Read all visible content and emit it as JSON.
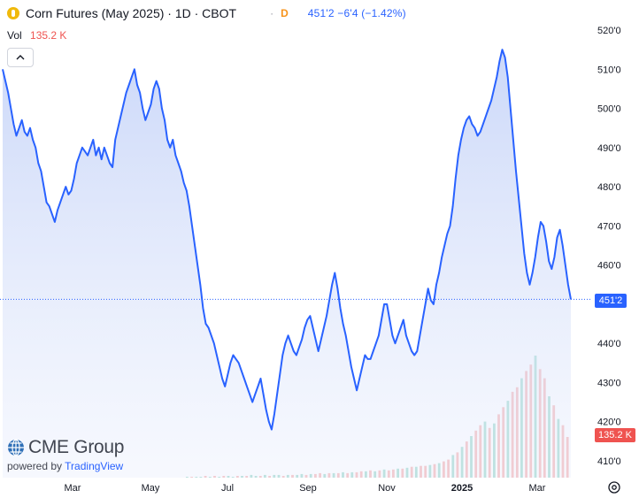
{
  "header": {
    "title": "Corn Futures (May 2025) · 1D · CBOT",
    "separator": "·",
    "delay_flag": "D",
    "quote": "451'2  −6'4 (−1.42%)"
  },
  "volume": {
    "label": "Vol",
    "value": "135.2 K"
  },
  "brand": {
    "name": "CME Group",
    "powered_prefix": "powered by",
    "powered_brand": "TradingView"
  },
  "tags": {
    "last_price": "451'2",
    "last_volume": "135.2 K"
  },
  "colors": {
    "line": "#2962ff",
    "fill_top": "#c9d6f7",
    "up_volume": "#8fd3c4",
    "down_volume": "#f4a6a6",
    "price_tag": "#2962ff",
    "volume_tag": "#ef5350"
  },
  "chart_data": {
    "type": "line",
    "series": [
      {
        "values": [
          510,
          507,
          504,
          500,
          496,
          493,
          495,
          497,
          494,
          493,
          495,
          492,
          490,
          486,
          484,
          480,
          476,
          475,
          473,
          471,
          474,
          476,
          478,
          480,
          478,
          479,
          482,
          486,
          488,
          490,
          489,
          488,
          490,
          492,
          488,
          490,
          487,
          490,
          488,
          486,
          485,
          492,
          495,
          498,
          501,
          504,
          506,
          508,
          510,
          506,
          504,
          500,
          497,
          499,
          501,
          505,
          507,
          505,
          500,
          497,
          492,
          490,
          492,
          488,
          486,
          484,
          481,
          479,
          475,
          470,
          465,
          460,
          455,
          449,
          445,
          444,
          442,
          440,
          437,
          434,
          431,
          429,
          432,
          435,
          437,
          436,
          435,
          433,
          431,
          429,
          427,
          425,
          427,
          429,
          431,
          427,
          423,
          420,
          418,
          422,
          427,
          432,
          437,
          440,
          442,
          440,
          438,
          437,
          439,
          441,
          444,
          446,
          447,
          444,
          441,
          438,
          441,
          444,
          447,
          451,
          455,
          458,
          454,
          449,
          445,
          442,
          438,
          434,
          431,
          428,
          431,
          434,
          437,
          436,
          436,
          438,
          440,
          442,
          446,
          450,
          450,
          446,
          442,
          440,
          442,
          444,
          446,
          442,
          440,
          438,
          437,
          438,
          442,
          446,
          450,
          454,
          451,
          450,
          455,
          458,
          462,
          465,
          468,
          470,
          475,
          482,
          488,
          492,
          495,
          497,
          498,
          496,
          495,
          493,
          494,
          496,
          498,
          500,
          502,
          505,
          508,
          512,
          515,
          513,
          508,
          500,
          492,
          484,
          477,
          470,
          463,
          458,
          455,
          458,
          462,
          467,
          471,
          470,
          466,
          461,
          459,
          462,
          467,
          469,
          465,
          460,
          455,
          451.25
        ]
      }
    ],
    "x_ticks": [
      "Mar",
      "May",
      "Jul",
      "Sep",
      "Nov",
      "2025",
      "Mar"
    ],
    "y_ticks": [
      "410'0",
      "420'0",
      "430'0",
      "440'0",
      "450'0",
      "460'0",
      "470'0",
      "480'0",
      "490'0",
      "500'0",
      "510'0",
      "520'0"
    ],
    "ylim": [
      405,
      522
    ],
    "last_value": "451'2",
    "volume_values": [
      1,
      1,
      1,
      1,
      2,
      1,
      2,
      1,
      2,
      2,
      1,
      2,
      2,
      2,
      3,
      2,
      2,
      3,
      2,
      3,
      3,
      2,
      3,
      3,
      3,
      4,
      3,
      4,
      4,
      5,
      4,
      5,
      5,
      5,
      6,
      5,
      6,
      6,
      7,
      7,
      8,
      7,
      8,
      9,
      8,
      9,
      10,
      10,
      11,
      12,
      12,
      13,
      13,
      14,
      15,
      16,
      18,
      20,
      25,
      28,
      34,
      40,
      46,
      52,
      58,
      62,
      55,
      60,
      70,
      78,
      85,
      95,
      100,
      110,
      118,
      125,
      135,
      120,
      110,
      90,
      80,
      65,
      58,
      45
    ],
    "volume_down": [
      0,
      1,
      0,
      0,
      1,
      0,
      1,
      0,
      1,
      0,
      0,
      1,
      0,
      1,
      0,
      0,
      1,
      0,
      1,
      0,
      0,
      1,
      0,
      1,
      0,
      0,
      1,
      0,
      1,
      1,
      0,
      1,
      0,
      1,
      0,
      1,
      0,
      1,
      1,
      0,
      1,
      0,
      1,
      0,
      1,
      1,
      0,
      1,
      0,
      1,
      0,
      1,
      1,
      0,
      1,
      0,
      1,
      1,
      0,
      1,
      0,
      1,
      0,
      1,
      1,
      0,
      1,
      0,
      1,
      1,
      0,
      1,
      1,
      0,
      1,
      1,
      0,
      1,
      1,
      0,
      1,
      0,
      1,
      1
    ],
    "last_volume": "135.2 K",
    "grid": false,
    "legend": "none"
  }
}
